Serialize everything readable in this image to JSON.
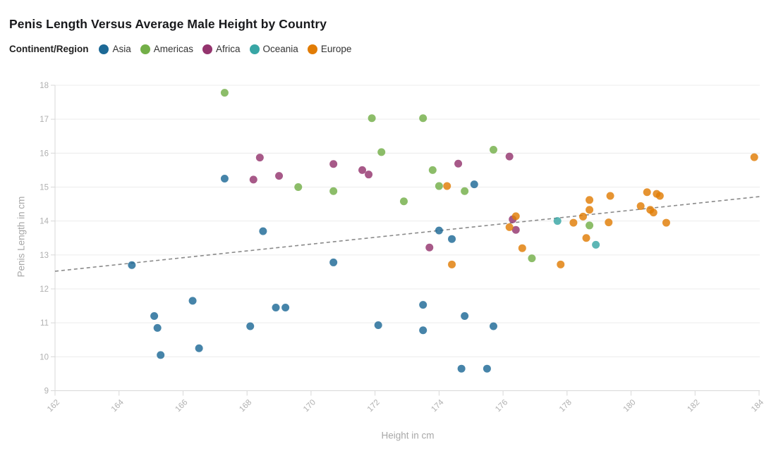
{
  "header": {
    "title": "Penis Length Versus Average Male Height by Country",
    "legend_title": "Continent/Region"
  },
  "chart_data": {
    "type": "scatter",
    "title": "Penis Length Versus Average Male Height by Country",
    "xlabel": "Height in cm",
    "ylabel": "Penis Length in cm",
    "xlim": [
      162,
      184
    ],
    "ylim": [
      9,
      18
    ],
    "xticks": [
      162,
      164,
      166,
      168,
      170,
      172,
      174,
      176,
      178,
      180,
      182,
      184
    ],
    "yticks": [
      9,
      10,
      11,
      12,
      13,
      14,
      15,
      16,
      17,
      18
    ],
    "grid": "horizontal",
    "legend_position": "top",
    "point_opacity": 0.82,
    "series": [
      {
        "name": "Asia",
        "color": "#1d6996",
        "points": [
          [
            164.4,
            12.7
          ],
          [
            165.1,
            11.2
          ],
          [
            165.2,
            10.85
          ],
          [
            165.3,
            10.05
          ],
          [
            166.3,
            11.65
          ],
          [
            166.5,
            10.25
          ],
          [
            167.3,
            15.25
          ],
          [
            168.1,
            10.9
          ],
          [
            168.5,
            13.7
          ],
          [
            168.9,
            11.45
          ],
          [
            169.2,
            11.45
          ],
          [
            170.7,
            12.78
          ],
          [
            172.1,
            10.93
          ],
          [
            173.5,
            11.53
          ],
          [
            173.5,
            10.78
          ],
          [
            174.0,
            13.72
          ],
          [
            174.4,
            13.47
          ],
          [
            174.7,
            9.65
          ],
          [
            174.8,
            11.2
          ],
          [
            175.1,
            15.08
          ],
          [
            175.5,
            9.65
          ],
          [
            175.7,
            10.9
          ]
        ]
      },
      {
        "name": "Americas",
        "color": "#73af48",
        "points": [
          [
            167.3,
            17.78
          ],
          [
            169.6,
            15.0
          ],
          [
            170.7,
            14.88
          ],
          [
            171.9,
            17.03
          ],
          [
            172.2,
            16.03
          ],
          [
            172.9,
            14.58
          ],
          [
            173.5,
            17.03
          ],
          [
            173.8,
            15.5
          ],
          [
            174.0,
            15.03
          ],
          [
            174.8,
            14.88
          ],
          [
            175.7,
            16.1
          ],
          [
            176.9,
            12.9
          ],
          [
            178.7,
            13.87
          ]
        ]
      },
      {
        "name": "Africa",
        "color": "#94346e",
        "points": [
          [
            168.2,
            15.22
          ],
          [
            168.4,
            15.87
          ],
          [
            169.0,
            15.33
          ],
          [
            170.7,
            15.68
          ],
          [
            171.6,
            15.5
          ],
          [
            171.8,
            15.37
          ],
          [
            173.7,
            13.22
          ],
          [
            174.6,
            15.69
          ],
          [
            176.2,
            15.9
          ],
          [
            176.3,
            14.05
          ],
          [
            176.4,
            13.74
          ]
        ]
      },
      {
        "name": "Oceania",
        "color": "#38a6a5",
        "points": [
          [
            177.7,
            14.0
          ],
          [
            178.9,
            13.3
          ]
        ]
      },
      {
        "name": "Europe",
        "color": "#e17c05",
        "points": [
          [
            174.25,
            15.03
          ],
          [
            174.4,
            12.72
          ],
          [
            176.2,
            13.82
          ],
          [
            176.4,
            14.14
          ],
          [
            176.6,
            13.2
          ],
          [
            177.8,
            12.72
          ],
          [
            178.2,
            13.95
          ],
          [
            178.5,
            14.13
          ],
          [
            178.6,
            13.5
          ],
          [
            178.7,
            14.33
          ],
          [
            178.7,
            14.62
          ],
          [
            179.3,
            13.96
          ],
          [
            179.35,
            14.74
          ],
          [
            180.3,
            14.44
          ],
          [
            180.5,
            14.85
          ],
          [
            180.6,
            14.33
          ],
          [
            180.7,
            14.25
          ],
          [
            180.8,
            14.8
          ],
          [
            180.9,
            14.74
          ],
          [
            181.1,
            13.95
          ],
          [
            183.85,
            15.88
          ]
        ]
      }
    ],
    "trendline": {
      "style": "dashed",
      "color": "#8a8a8a",
      "x": [
        162,
        184
      ],
      "y": [
        12.52,
        14.72
      ]
    }
  },
  "style_colors": {
    "gridline": "#ececec",
    "axis_line": "#d8d8d8",
    "tick_label": "#b0b0b0"
  }
}
